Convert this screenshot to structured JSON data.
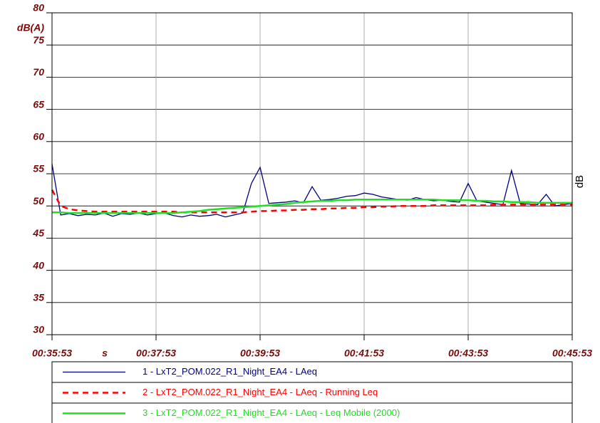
{
  "chart_data": {
    "type": "line",
    "y_unit": "dB(A)",
    "x_unit": "s",
    "y2_label": "dB",
    "x": [
      0,
      10,
      20,
      30,
      40,
      50,
      60,
      70,
      80,
      90,
      100,
      110,
      120,
      130,
      140,
      150,
      160,
      170,
      180,
      190,
      200,
      210,
      220,
      230,
      240,
      250,
      260,
      270,
      280,
      290,
      300,
      310,
      320,
      330,
      340,
      350,
      360,
      370,
      380,
      390,
      400,
      410,
      420,
      430,
      440,
      450,
      460,
      470,
      480,
      490,
      500,
      510,
      520,
      530,
      540,
      550,
      560,
      570,
      580,
      590,
      600
    ],
    "xlim": [
      0,
      600
    ],
    "xticks": [
      {
        "value": 0,
        "label": "00:35:53"
      },
      {
        "value": 120,
        "label": "00:37:53"
      },
      {
        "value": 240,
        "label": "00:39:53"
      },
      {
        "value": 360,
        "label": "00:41:53"
      },
      {
        "value": 480,
        "label": "00:43:53"
      },
      {
        "value": 600,
        "label": "00:45:53"
      }
    ],
    "ylim": [
      30,
      80
    ],
    "yticks": [
      30,
      35,
      40,
      45,
      50,
      55,
      60,
      65,
      70,
      75,
      80
    ],
    "grid": true,
    "series": [
      {
        "name": "1 - LxT2_POM.022_R1_Night_EA4 - LAeq",
        "color": "#000080",
        "style": "solid",
        "values": [
          56.5,
          48.6,
          48.8,
          48.5,
          48.7,
          48.6,
          48.9,
          48.4,
          48.8,
          48.7,
          48.9,
          48.6,
          48.8,
          48.9,
          48.5,
          48.3,
          48.6,
          48.4,
          48.5,
          48.7,
          48.3,
          48.6,
          48.9,
          53.5,
          56.0,
          50.4,
          50.5,
          50.6,
          50.8,
          50.5,
          53.0,
          50.9,
          51.0,
          51.2,
          51.5,
          51.6,
          52.0,
          51.8,
          51.4,
          51.2,
          51.0,
          50.9,
          51.3,
          51.0,
          50.8,
          50.9,
          50.7,
          50.6,
          53.5,
          50.8,
          50.6,
          50.4,
          50.2,
          55.5,
          50.4,
          50.3,
          50.2,
          51.8,
          50.0,
          50.2,
          50.4
        ]
      },
      {
        "name": "2 - LxT2_POM.022_R1_Night_EA4 - LAeq - Running Leq",
        "color": "#ff0000",
        "style": "dashed",
        "values": [
          52.5,
          50.0,
          49.5,
          49.3,
          49.2,
          49.1,
          49.1,
          49.1,
          49.1,
          49.1,
          49.1,
          49.1,
          49.1,
          49.1,
          49.1,
          49.0,
          49.0,
          49.0,
          49.0,
          49.0,
          49.0,
          49.0,
          49.0,
          49.1,
          49.2,
          49.2,
          49.3,
          49.3,
          49.4,
          49.4,
          49.5,
          49.5,
          49.6,
          49.6,
          49.7,
          49.7,
          49.8,
          49.8,
          49.9,
          49.9,
          50.0,
          50.0,
          50.0,
          50.0,
          50.1,
          50.1,
          50.1,
          50.1,
          50.1,
          50.1,
          50.1,
          50.2,
          50.2,
          50.2,
          50.2,
          50.2,
          50.2,
          50.2,
          50.2,
          50.2,
          50.2
        ]
      },
      {
        "name": "3 - LxT2_POM.022_R1_Night_EA4 - LAeq - Leq Mobile (2000)",
        "color": "#1fe01f",
        "style": "solid",
        "values": [
          49.0,
          49.0,
          48.9,
          48.9,
          48.9,
          48.9,
          48.9,
          48.9,
          48.9,
          48.9,
          48.9,
          48.9,
          48.9,
          48.9,
          48.9,
          49.0,
          49.1,
          49.2,
          49.4,
          49.5,
          49.6,
          49.7,
          49.8,
          49.9,
          50.0,
          50.1,
          50.2,
          50.3,
          50.5,
          50.6,
          50.7,
          50.8,
          50.8,
          50.9,
          50.9,
          51.0,
          51.0,
          51.0,
          51.0,
          51.0,
          51.0,
          51.0,
          51.0,
          51.0,
          51.0,
          50.9,
          50.9,
          50.9,
          50.9,
          50.8,
          50.8,
          50.7,
          50.7,
          50.6,
          50.6,
          50.6,
          50.5,
          50.5,
          50.5,
          50.5,
          50.5
        ]
      }
    ]
  }
}
